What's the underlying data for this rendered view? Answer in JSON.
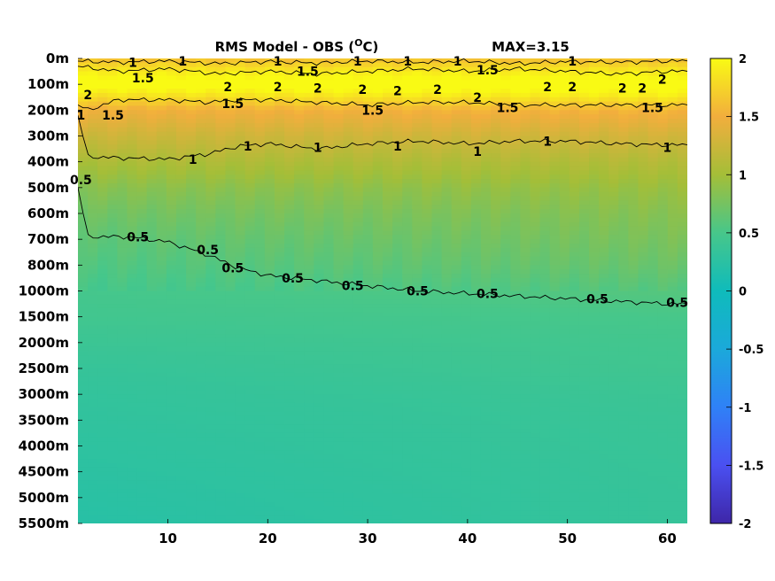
{
  "chart_data": {
    "type": "heatmap",
    "title_main": "RMS Model - OBS (",
    "title_sup": "O",
    "title_unit": "C)",
    "title_max": "MAX=3.15",
    "x_ticks": [
      "10",
      "20",
      "30",
      "40",
      "50",
      "60"
    ],
    "x_range": [
      1,
      62
    ],
    "y_labels": [
      "0m",
      "100m",
      "200m",
      "300m",
      "400m",
      "500m",
      "600m",
      "700m",
      "800m",
      "1000m",
      "1500m",
      "2000m",
      "2500m",
      "3000m",
      "3500m",
      "4000m",
      "4500m",
      "5000m",
      "5500m"
    ],
    "colorbar_ticks": [
      "2",
      "1.5",
      "1",
      "0.5",
      "0",
      "-0.5",
      "-1",
      "-1.5",
      "-2"
    ],
    "color_range": [
      -2,
      2
    ],
    "colormap": "parula",
    "contour_levels": [
      0.5,
      1,
      1.5,
      2
    ],
    "rms_profile": {
      "levels": [
        "0m",
        "50m",
        "100m",
        "150m",
        "200m",
        "300m",
        "400m",
        "500m",
        "600m",
        "700m",
        "800m",
        "1000m",
        "1500m",
        "2000m",
        "2500m",
        "3000m",
        "3500m",
        "4000m",
        "4500m",
        "5000m",
        "5500m"
      ],
      "values_x1": [
        1.6,
        1.9,
        2.1,
        1.8,
        1.5,
        1.25,
        1.05,
        0.85,
        0.72,
        0.62,
        0.55,
        0.48,
        0.45,
        0.4,
        0.35,
        0.32,
        0.3,
        0.28,
        0.26,
        0.24,
        0.22
      ],
      "values_x62": [
        1.6,
        1.9,
        2.1,
        1.9,
        1.55,
        1.3,
        1.1,
        0.95,
        0.85,
        0.78,
        0.7,
        0.58,
        0.5,
        0.46,
        0.44,
        0.4,
        0.38,
        0.37,
        0.36,
        0.35,
        0.35
      ]
    },
    "contours": [
      {
        "level": "0.5",
        "x": [
          1,
          2,
          6,
          10,
          14,
          17,
          20,
          25,
          30,
          35,
          40,
          45,
          50,
          55,
          60,
          62
        ],
        "depth_index": [
          5.0,
          6.9,
          6.9,
          7.1,
          7.6,
          8.1,
          8.4,
          8.6,
          8.8,
          9.0,
          9.1,
          9.2,
          9.3,
          9.4,
          9.5,
          9.5
        ]
      },
      {
        "level": "1",
        "x": [
          1,
          2,
          5,
          10,
          14,
          17,
          20,
          25,
          30,
          35,
          40,
          45,
          50,
          55,
          60,
          62
        ],
        "depth_index": [
          2.2,
          3.8,
          3.85,
          3.9,
          3.7,
          3.4,
          3.3,
          3.5,
          3.3,
          3.2,
          3.3,
          3.2,
          3.2,
          3.3,
          3.35,
          3.35
        ]
      },
      {
        "level": "1.5",
        "x": [
          1,
          2,
          5,
          10,
          14,
          17,
          20,
          25,
          30,
          35,
          40,
          45,
          50,
          55,
          60,
          62
        ],
        "depth_index": [
          1.8,
          2.0,
          1.6,
          1.6,
          1.7,
          1.6,
          1.6,
          1.7,
          1.8,
          1.7,
          1.7,
          1.8,
          1.8,
          1.8,
          1.8,
          1.8
        ]
      },
      {
        "level": "1.5",
        "x": [
          1,
          5,
          10,
          15,
          20,
          25,
          30,
          35,
          40,
          45,
          50,
          55,
          60,
          62
        ],
        "depth_index": [
          0.3,
          0.5,
          0.4,
          0.6,
          0.5,
          0.6,
          0.5,
          0.4,
          0.5,
          0.4,
          0.5,
          0.6,
          0.5,
          0.5
        ]
      },
      {
        "level": "1",
        "x": [
          1,
          5,
          10,
          15,
          20,
          25,
          30,
          35,
          40,
          45,
          50,
          55,
          60,
          62
        ],
        "depth_index": [
          0.1,
          0.15,
          0.1,
          0.2,
          0.12,
          0.18,
          0.1,
          0.15,
          0.1,
          0.2,
          0.12,
          0.15,
          0.1,
          0.1
        ]
      }
    ],
    "contour_labels": [
      {
        "text": "1",
        "x": 6.5,
        "d": 0.15
      },
      {
        "text": "1",
        "x": 11.5,
        "d": 0.1
      },
      {
        "text": "1",
        "x": 21,
        "d": 0.1
      },
      {
        "text": "1",
        "x": 29,
        "d": 0.1
      },
      {
        "text": "1",
        "x": 34,
        "d": 0.1
      },
      {
        "text": "1",
        "x": 39,
        "d": 0.1
      },
      {
        "text": "1",
        "x": 50.5,
        "d": 0.1
      },
      {
        "text": "1.5",
        "x": 7.5,
        "d": 0.75
      },
      {
        "text": "1.5",
        "x": 24,
        "d": 0.5
      },
      {
        "text": "1.5",
        "x": 42,
        "d": 0.45
      },
      {
        "text": "1.5",
        "x": 4.5,
        "d": 2.2
      },
      {
        "text": "1.5",
        "x": 16.5,
        "d": 1.75
      },
      {
        "text": "1.5",
        "x": 30.5,
        "d": 2.0
      },
      {
        "text": "1.5",
        "x": 44,
        "d": 1.9
      },
      {
        "text": "1.5",
        "x": 58.5,
        "d": 1.9
      },
      {
        "text": "2",
        "x": 2,
        "d": 1.4
      },
      {
        "text": "2",
        "x": 16,
        "d": 1.1
      },
      {
        "text": "2",
        "x": 21,
        "d": 1.1
      },
      {
        "text": "2",
        "x": 25,
        "d": 1.15
      },
      {
        "text": "2",
        "x": 29.5,
        "d": 1.2
      },
      {
        "text": "2",
        "x": 33,
        "d": 1.25
      },
      {
        "text": "2",
        "x": 37,
        "d": 1.2
      },
      {
        "text": "2",
        "x": 41,
        "d": 1.5
      },
      {
        "text": "2",
        "x": 48,
        "d": 1.1
      },
      {
        "text": "2",
        "x": 50.5,
        "d": 1.1
      },
      {
        "text": "2",
        "x": 55.5,
        "d": 1.15
      },
      {
        "text": "2",
        "x": 57.5,
        "d": 1.15
      },
      {
        "text": "2",
        "x": 59.5,
        "d": 0.8
      },
      {
        "text": "1",
        "x": 1.3,
        "d": 2.2
      },
      {
        "text": "1",
        "x": 12.5,
        "d": 3.9
      },
      {
        "text": "1",
        "x": 18,
        "d": 3.4
      },
      {
        "text": "1",
        "x": 25,
        "d": 3.45
      },
      {
        "text": "1",
        "x": 33,
        "d": 3.4
      },
      {
        "text": "1",
        "x": 41,
        "d": 3.6
      },
      {
        "text": "1",
        "x": 48,
        "d": 3.2
      },
      {
        "text": "1",
        "x": 60,
        "d": 3.45
      },
      {
        "text": "0.5",
        "x": 1.3,
        "d": 4.7
      },
      {
        "text": "0.5",
        "x": 7,
        "d": 6.9
      },
      {
        "text": "0.5",
        "x": 14,
        "d": 7.4
      },
      {
        "text": "0.5",
        "x": 16.5,
        "d": 8.1
      },
      {
        "text": "0.5",
        "x": 22.5,
        "d": 8.5
      },
      {
        "text": "0.5",
        "x": 28.5,
        "d": 8.8
      },
      {
        "text": "0.5",
        "x": 35,
        "d": 9.0
      },
      {
        "text": "0.5",
        "x": 42,
        "d": 9.1
      },
      {
        "text": "0.5",
        "x": 53,
        "d": 9.3
      },
      {
        "text": "0.5",
        "x": 61,
        "d": 9.45
      }
    ]
  }
}
